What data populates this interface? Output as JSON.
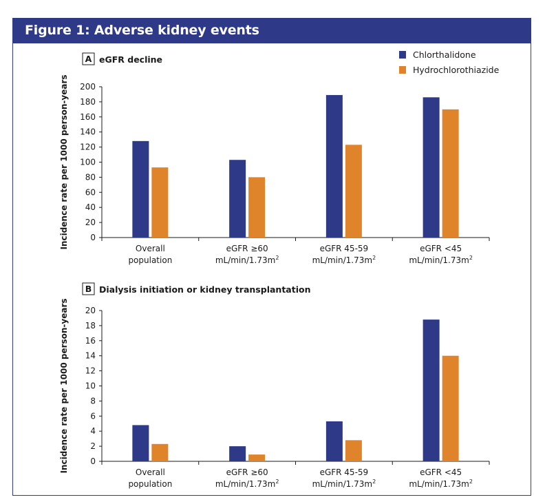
{
  "figure_title": "Figure 1: Adverse kidney events",
  "legend": [
    {
      "label": "Chlorthalidone",
      "color": "#2e3a87"
    },
    {
      "label": "Hydrochlorothiazide",
      "color": "#e0842b"
    }
  ],
  "chart_data": [
    {
      "type": "bar",
      "panel_letter": "A",
      "title": "eGFR decline",
      "ylabel": "Incidence rate per 1000 person-years",
      "ylim": [
        0,
        200
      ],
      "yticks": [
        0,
        20,
        40,
        60,
        80,
        100,
        120,
        140,
        160,
        180,
        200
      ],
      "categories": [
        {
          "line1": "Overall",
          "line2": "population"
        },
        {
          "line1": "eGFR ≥60",
          "line2": "mL/min/1.73m",
          "sup": "2"
        },
        {
          "line1": "eGFR 45-59",
          "line2": "mL/min/1.73m",
          "sup": "2"
        },
        {
          "line1": "eGFR <45",
          "line2": "mL/min/1.73m",
          "sup": "2"
        }
      ],
      "series": [
        {
          "name": "Chlorthalidone",
          "values": [
            128,
            103,
            189,
            186
          ]
        },
        {
          "name": "Hydrochlorothiazide",
          "values": [
            93,
            80,
            123,
            170
          ]
        }
      ]
    },
    {
      "type": "bar",
      "panel_letter": "B",
      "title": "Dialysis initiation or kidney transplantation",
      "ylabel": "Incidence rate per 1000 person-years",
      "ylim": [
        0,
        20
      ],
      "yticks": [
        0,
        2,
        4,
        6,
        8,
        10,
        12,
        14,
        16,
        18,
        20
      ],
      "categories": [
        {
          "line1": "Overall",
          "line2": "population"
        },
        {
          "line1": "eGFR ≥60",
          "line2": "mL/min/1.73m",
          "sup": "2"
        },
        {
          "line1": "eGFR 45-59",
          "line2": "mL/min/1.73m",
          "sup": "2"
        },
        {
          "line1": "eGFR <45",
          "line2": "mL/min/1.73m",
          "sup": "2"
        }
      ],
      "series": [
        {
          "name": "Chlorthalidone",
          "values": [
            4.8,
            2.0,
            5.3,
            18.8
          ]
        },
        {
          "name": "Hydrochlorothiazide",
          "values": [
            2.3,
            0.9,
            2.8,
            14.0
          ]
        }
      ]
    }
  ]
}
